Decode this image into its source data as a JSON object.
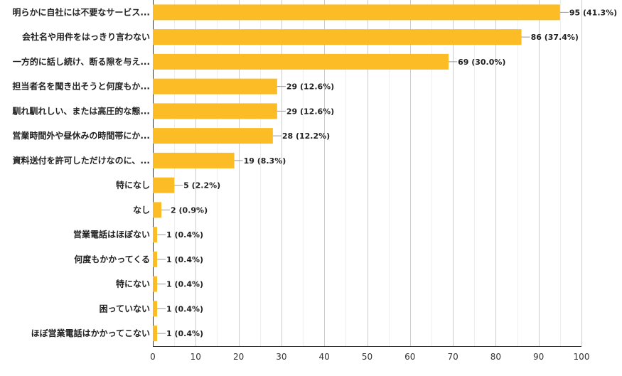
{
  "chart_data": {
    "type": "bar",
    "orientation": "horizontal",
    "categories": [
      "明らかに自社には不要なサービス...",
      "会社名や用件をはっきり言わない",
      "一方的に話し続け、断る隙を与え...",
      "担当者名を聞き出そうと何度もか...",
      "馴れ馴れしい、または高圧的な態...",
      "営業時間外や昼休みの時間帯にか...",
      "資料送付を許可しただけなのに、...",
      "特になし",
      "なし",
      "営業電話はほぼない",
      "何度もかかってくる",
      "特にない",
      "困っていない",
      "ほぼ営業電話はかかってこない"
    ],
    "values": [
      95,
      86,
      69,
      29,
      29,
      28,
      19,
      5,
      2,
      1,
      1,
      1,
      1,
      1
    ],
    "value_labels": [
      "95 (41.3%)",
      "86 (37.4%)",
      "69 (30.0%)",
      "29 (12.6%)",
      "29 (12.6%)",
      "28 (12.2%)",
      "19 (8.3%)",
      "5 (2.2%)",
      "2 (0.9%)",
      "1 (0.4%)",
      "1 (0.4%)",
      "1 (0.4%)",
      "1 (0.4%)",
      "1 (0.4%)"
    ],
    "xlim": [
      0,
      100
    ],
    "xticks": [
      0,
      10,
      20,
      30,
      40,
      50,
      60,
      70,
      80,
      90,
      100
    ],
    "grid": true,
    "bar_color": "#FBBC26",
    "grid_color": "#CCCCCC",
    "title": "",
    "xlabel": "",
    "ylabel": ""
  }
}
